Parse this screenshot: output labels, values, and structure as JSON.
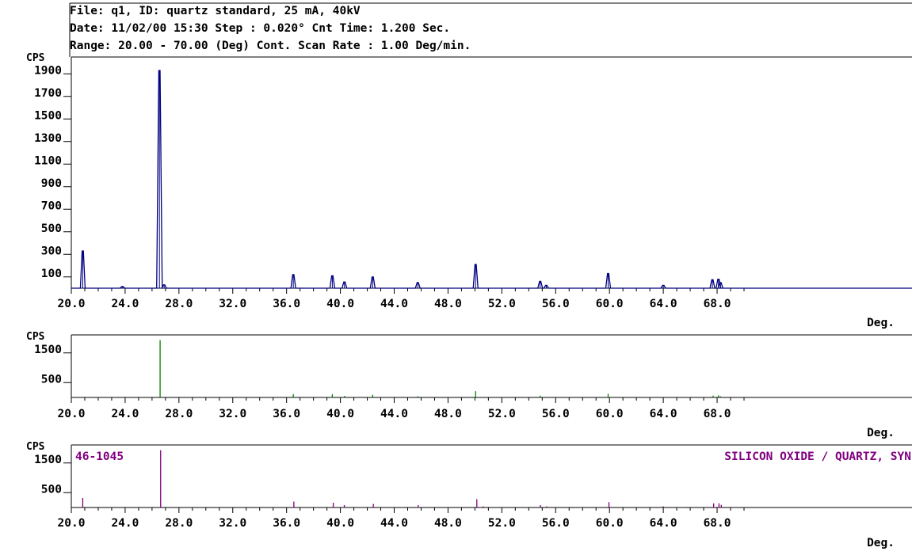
{
  "header": {
    "line1": "File: q1, ID: quartz standard, 25 mA, 40kV",
    "line2": "Date: 11/02/00 15:30  Step : 0.020° Cnt Time: 1.200 Sec.",
    "line3": "Range: 20.00 - 70.00 (Deg) Cont. Scan Rate : 1.00 Deg/min."
  },
  "colors": {
    "pattern": "#000080",
    "peaks": "#008000",
    "reference": "#800080",
    "axes": "#000000"
  },
  "chart_data": [
    {
      "type": "line",
      "ylabel": "CPS",
      "xlabel": "Deg.",
      "xlim": [
        20,
        70
      ],
      "ylim": [
        0,
        2000
      ],
      "x_ticks": [
        "20.0",
        "24.0",
        "28.0",
        "32.0",
        "36.0",
        "40.0",
        "44.0",
        "48.0",
        "52.0",
        "56.0",
        "60.0",
        "64.0",
        "68.0"
      ],
      "y_ticks": [
        "100",
        "300",
        "500",
        "700",
        "900",
        "1100",
        "1300",
        "1500",
        "1700",
        "1900"
      ],
      "peaks": [
        {
          "x": 20.85,
          "y": 330
        },
        {
          "x": 23.8,
          "y": 15
        },
        {
          "x": 26.55,
          "y": 1930
        },
        {
          "x": 26.9,
          "y": 30
        },
        {
          "x": 36.5,
          "y": 120
        },
        {
          "x": 39.4,
          "y": 110
        },
        {
          "x": 40.3,
          "y": 55
        },
        {
          "x": 42.4,
          "y": 100
        },
        {
          "x": 45.75,
          "y": 50
        },
        {
          "x": 50.05,
          "y": 210
        },
        {
          "x": 54.85,
          "y": 60
        },
        {
          "x": 55.3,
          "y": 25
        },
        {
          "x": 59.9,
          "y": 130
        },
        {
          "x": 64.0,
          "y": 25
        },
        {
          "x": 67.65,
          "y": 75
        },
        {
          "x": 68.1,
          "y": 80
        },
        {
          "x": 68.25,
          "y": 50
        }
      ]
    },
    {
      "type": "bar",
      "ylabel": "CPS",
      "xlabel": "Deg.",
      "xlim": [
        20,
        70
      ],
      "ylim": [
        0,
        2000
      ],
      "x_ticks": [
        "20.0",
        "24.0",
        "28.0",
        "32.0",
        "36.0",
        "40.0",
        "44.0",
        "48.0",
        "52.0",
        "56.0",
        "60.0",
        "64.0",
        "68.0"
      ],
      "y_ticks": [
        "500",
        "1500"
      ],
      "sticks": [
        {
          "x": 26.6,
          "y": 1930
        },
        {
          "x": 36.5,
          "y": 110
        },
        {
          "x": 39.4,
          "y": 110
        },
        {
          "x": 40.3,
          "y": 50
        },
        {
          "x": 42.4,
          "y": 90
        },
        {
          "x": 45.75,
          "y": 40
        },
        {
          "x": 50.05,
          "y": 210
        },
        {
          "x": 54.85,
          "y": 60
        },
        {
          "x": 59.9,
          "y": 120
        },
        {
          "x": 67.7,
          "y": 60
        },
        {
          "x": 68.1,
          "y": 70
        },
        {
          "x": 68.25,
          "y": 40
        }
      ]
    },
    {
      "type": "bar",
      "ylabel": "CPS",
      "xlabel": "Deg.",
      "xlim": [
        20,
        70
      ],
      "ylim": [
        0,
        2000
      ],
      "x_ticks": [
        "20.0",
        "24.0",
        "28.0",
        "32.0",
        "36.0",
        "40.0",
        "44.0",
        "48.0",
        "52.0",
        "56.0",
        "60.0",
        "64.0",
        "68.0"
      ],
      "y_ticks": [
        "500",
        "1500"
      ],
      "card_id": "46-1045",
      "card_name": "SILICON OXIDE / QUARTZ, SYN",
      "sticks": [
        {
          "x": 20.85,
          "y": 320
        },
        {
          "x": 26.64,
          "y": 1930
        },
        {
          "x": 36.54,
          "y": 200
        },
        {
          "x": 39.47,
          "y": 160
        },
        {
          "x": 40.29,
          "y": 80
        },
        {
          "x": 42.45,
          "y": 120
        },
        {
          "x": 45.79,
          "y": 80
        },
        {
          "x": 50.14,
          "y": 280
        },
        {
          "x": 50.62,
          "y": 40
        },
        {
          "x": 54.87,
          "y": 80
        },
        {
          "x": 55.33,
          "y": 40
        },
        {
          "x": 57.23,
          "y": 20
        },
        {
          "x": 59.96,
          "y": 180
        },
        {
          "x": 63.99,
          "y": 40
        },
        {
          "x": 65.79,
          "y": 20
        },
        {
          "x": 67.74,
          "y": 140
        },
        {
          "x": 68.14,
          "y": 140
        },
        {
          "x": 68.31,
          "y": 90
        }
      ]
    }
  ]
}
